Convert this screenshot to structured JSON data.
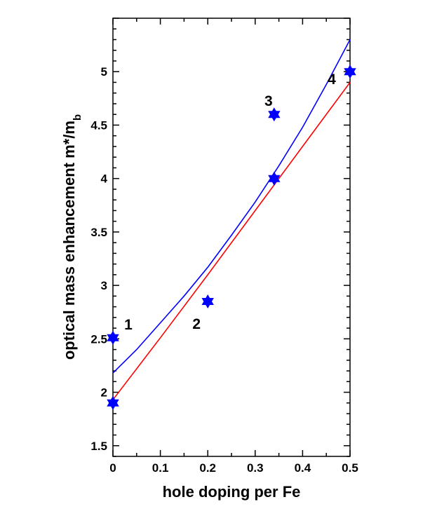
{
  "chart_data": {
    "type": "scatter",
    "title": "",
    "xlabel": "hole doping per Fe",
    "ylabel": {
      "main": "optical mass enhancement m*/m",
      "subscript": "b"
    },
    "xlim": [
      0,
      0.5
    ],
    "ylim": [
      1.4,
      5.5
    ],
    "x_ticks": [
      "0",
      "0.1",
      "0.2",
      "0.3",
      "0.4",
      "0.5"
    ],
    "y_ticks": [
      "1.5",
      "2",
      "2.5",
      "3",
      "3.5",
      "4",
      "4.5",
      "5"
    ],
    "grid": false,
    "points": [
      {
        "x": 0.0,
        "y": 2.51,
        "label": "1"
      },
      {
        "x": 0.0,
        "y": 1.9,
        "label": ""
      },
      {
        "x": 0.2,
        "y": 2.85,
        "label": "2"
      },
      {
        "x": 0.34,
        "y": 4.6,
        "label": "3"
      },
      {
        "x": 0.34,
        "y": 4.0,
        "label": ""
      },
      {
        "x": 0.5,
        "y": 5.0,
        "label": "4"
      }
    ],
    "marker_color": "#0000ff",
    "fits": [
      {
        "color": "#0000ff",
        "x": [
          0.0,
          0.05,
          0.1,
          0.15,
          0.2,
          0.25,
          0.3,
          0.35,
          0.4,
          0.45,
          0.5
        ],
        "y": [
          2.18,
          2.4,
          2.65,
          2.9,
          3.17,
          3.47,
          3.78,
          4.12,
          4.48,
          4.88,
          5.3
        ]
      },
      {
        "color": "#ff0000",
        "x": [
          0.0,
          0.1,
          0.2,
          0.3,
          0.4,
          0.5
        ],
        "y": [
          1.93,
          2.51,
          3.1,
          3.7,
          4.3,
          4.9
        ]
      }
    ]
  }
}
